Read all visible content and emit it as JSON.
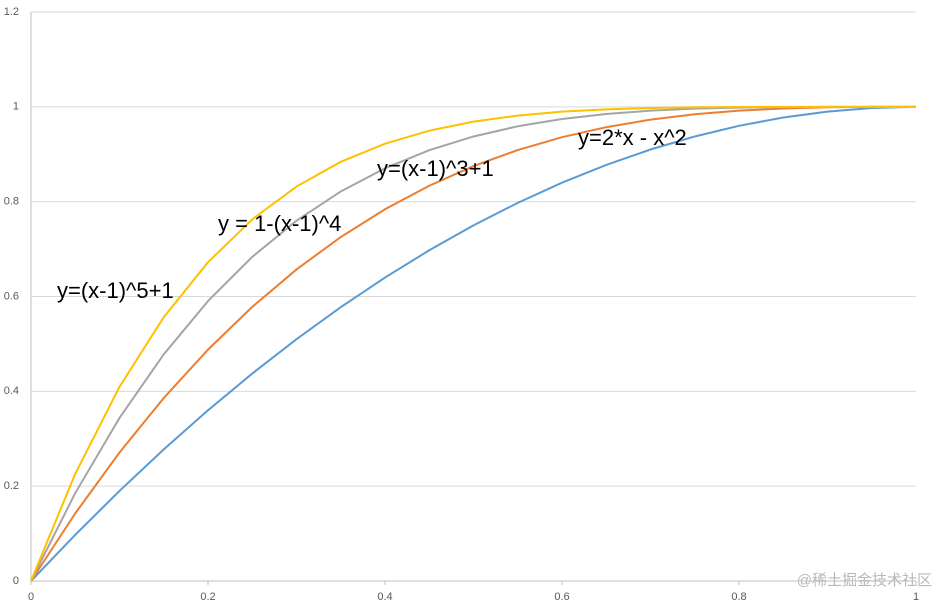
{
  "chart_data": {
    "type": "line",
    "x": [
      0,
      0.05,
      0.1,
      0.15,
      0.2,
      0.25,
      0.3,
      0.35,
      0.4,
      0.45,
      0.5,
      0.55,
      0.6,
      0.65,
      0.7,
      0.75,
      0.8,
      0.85,
      0.9,
      0.95,
      1
    ],
    "series": [
      {
        "name": "y=2*x - x^2",
        "color": "#5b9bd5",
        "values": [
          0,
          0.0975,
          0.19,
          0.2775,
          0.36,
          0.4375,
          0.51,
          0.5775,
          0.64,
          0.6975,
          0.75,
          0.7975,
          0.84,
          0.8775,
          0.91,
          0.9375,
          0.96,
          0.9775,
          0.99,
          0.9975,
          1
        ]
      },
      {
        "name": "y=(x-1)^3+1",
        "color": "#ed7d31",
        "values": [
          0,
          0.1426,
          0.271,
          0.3859,
          0.488,
          0.5781,
          0.657,
          0.7254,
          0.784,
          0.8336,
          0.875,
          0.9089,
          0.936,
          0.9571,
          0.973,
          0.9844,
          0.992,
          0.9966,
          0.999,
          0.9999,
          1
        ]
      },
      {
        "name": "y = 1-(x-1)^4",
        "color": "#a5a5a5",
        "values": [
          0,
          0.1855,
          0.3439,
          0.478,
          0.5904,
          0.6836,
          0.7599,
          0.8215,
          0.8704,
          0.9085,
          0.9375,
          0.959,
          0.9744,
          0.985,
          0.9919,
          0.9961,
          0.9984,
          0.9995,
          0.9999,
          1,
          1
        ]
      },
      {
        "name": "y=(x-1)^5+1",
        "color": "#ffc000",
        "values": [
          0,
          0.2262,
          0.4095,
          0.5563,
          0.6723,
          0.7627,
          0.8319,
          0.884,
          0.9222,
          0.9497,
          0.9688,
          0.9815,
          0.9898,
          0.9947,
          0.9976,
          0.999,
          0.9997,
          0.9999,
          1,
          1,
          1
        ]
      }
    ],
    "xlim": [
      0,
      1
    ],
    "xticks": [
      0,
      0.2,
      0.4,
      0.6,
      0.8,
      1
    ],
    "ylim": [
      0,
      1.2
    ],
    "yticks": [
      0,
      0.2,
      0.4,
      0.6,
      0.8,
      1,
      1.2
    ],
    "grid": true,
    "watermark": "@稀土掘金技术社区"
  }
}
